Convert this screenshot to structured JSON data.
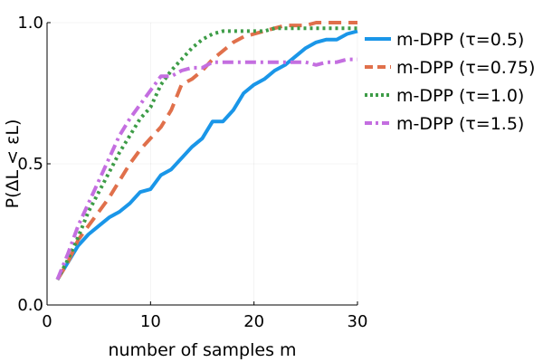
{
  "chart_data": {
    "type": "line",
    "title": "",
    "xlabel": "number of samples m",
    "ylabel": "P(ΔL < εL)",
    "xlim": [
      0,
      30
    ],
    "ylim": [
      0,
      1
    ],
    "xticks": [
      0,
      10,
      20,
      30
    ],
    "xtick_labels": [
      "0",
      "10",
      "20",
      "30"
    ],
    "yticks": [
      0,
      0.5,
      1
    ],
    "ytick_labels": [
      "0.0",
      "0.5",
      "1.0"
    ],
    "grid": true,
    "legend_position": "top-right, outside plot",
    "x": [
      1,
      2,
      3,
      4,
      5,
      6,
      7,
      8,
      9,
      10,
      11,
      12,
      13,
      14,
      15,
      16,
      17,
      18,
      19,
      20,
      21,
      22,
      23,
      24,
      25,
      26,
      27,
      28,
      29,
      30
    ],
    "series": [
      {
        "name": "m-DPP (τ=0.5)",
        "color": "#1a96e8",
        "style": "solid",
        "values": [
          0.09,
          0.15,
          0.21,
          0.25,
          0.28,
          0.31,
          0.33,
          0.36,
          0.4,
          0.41,
          0.46,
          0.48,
          0.52,
          0.56,
          0.59,
          0.65,
          0.65,
          0.69,
          0.75,
          0.78,
          0.8,
          0.83,
          0.85,
          0.88,
          0.91,
          0.93,
          0.94,
          0.94,
          0.96,
          0.97
        ]
      },
      {
        "name": "m-DPP (τ=0.75)",
        "color": "#e0704b",
        "style": "dashed",
        "values": [
          0.09,
          0.15,
          0.23,
          0.28,
          0.33,
          0.38,
          0.44,
          0.5,
          0.55,
          0.59,
          0.63,
          0.69,
          0.78,
          0.8,
          0.83,
          0.87,
          0.9,
          0.93,
          0.95,
          0.96,
          0.97,
          0.98,
          0.99,
          0.99,
          0.99,
          1.0,
          1.0,
          1.0,
          1.0,
          1.0
        ]
      },
      {
        "name": "m-DPP (τ=1.0)",
        "color": "#3d9c47",
        "style": "dotted",
        "values": [
          0.09,
          0.16,
          0.24,
          0.33,
          0.4,
          0.47,
          0.54,
          0.6,
          0.66,
          0.7,
          0.78,
          0.83,
          0.87,
          0.91,
          0.94,
          0.96,
          0.97,
          0.97,
          0.97,
          0.97,
          0.97,
          0.98,
          0.98,
          0.98,
          0.98,
          0.98,
          0.98,
          0.98,
          0.98,
          0.98
        ]
      },
      {
        "name": "m-DPP (τ=1.5)",
        "color": "#c46ee0",
        "style": "dashdot",
        "values": [
          0.09,
          0.18,
          0.28,
          0.36,
          0.44,
          0.52,
          0.6,
          0.66,
          0.71,
          0.76,
          0.81,
          0.81,
          0.83,
          0.84,
          0.84,
          0.86,
          0.86,
          0.86,
          0.86,
          0.86,
          0.86,
          0.86,
          0.86,
          0.86,
          0.86,
          0.85,
          0.86,
          0.86,
          0.87,
          0.87
        ]
      }
    ]
  }
}
